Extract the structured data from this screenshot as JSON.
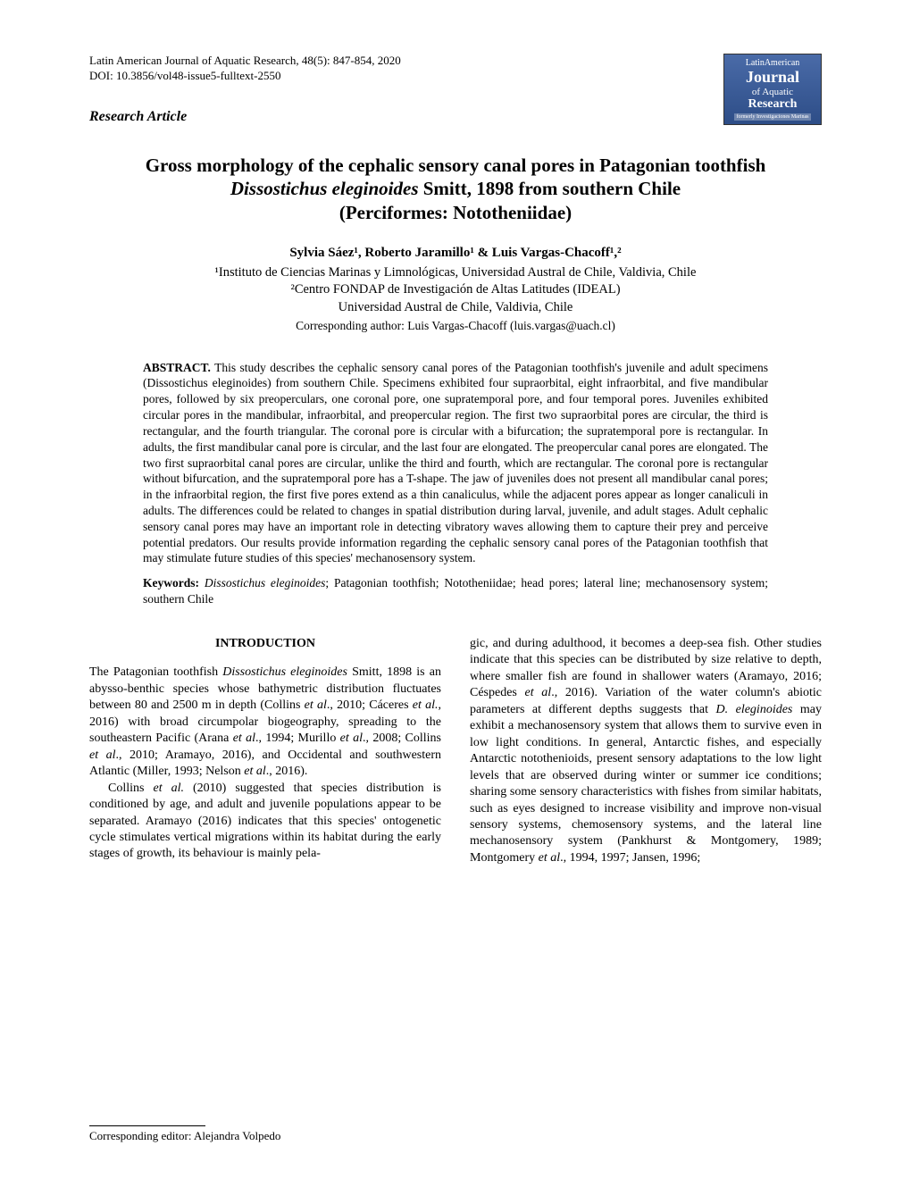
{
  "journal": {
    "citation": "Latin American Journal of Aquatic Research, 48(5): 847-854, 2020",
    "doi": "DOI: 10.3856/vol48-issue5-fulltext-2550",
    "article_type": "Research Article"
  },
  "logo": {
    "top": "LatinAmerican",
    "journal": "Journal",
    "aquatic": "of Aquatic",
    "research": "Research",
    "bottom": "formerly Investigaciones Marinas"
  },
  "title": {
    "line1": "Gross morphology of the cephalic sensory canal pores in Patagonian toothfish",
    "species": "Dissostichus eleginoides",
    "line2_rest": " Smitt, 1898 from southern Chile",
    "line3": "(Perciformes: Nototheniidae)"
  },
  "authors": "Sylvia Sáez¹, Roberto Jaramillo¹ & Luis Vargas-Chacoff¹,²",
  "affiliations": {
    "aff1": "¹Instituto de Ciencias Marinas y Limnológicas, Universidad Austral de Chile, Valdivia, Chile",
    "aff2": "²Centro FONDAP de Investigación de Altas Latitudes (IDEAL)",
    "aff3": "Universidad Austral de Chile, Valdivia, Chile",
    "corresponding": "Corresponding author: Luis Vargas-Chacoff (luis.vargas@uach.cl)"
  },
  "abstract": {
    "label": "ABSTRACT.",
    "text": " This study describes the cephalic sensory canal pores of the Patagonian toothfish's juvenile and adult specimens (Dissostichus eleginoides) from southern Chile. Specimens exhibited four supraorbital, eight infraorbital, and five mandibular pores, followed by six preoperculars, one coronal pore, one supratemporal pore, and four temporal pores. Juveniles exhibited circular pores in the mandibular, infraorbital, and preopercular region. The first two supraorbital pores are circular, the third is rectangular, and the fourth triangular. The coronal pore is circular with a bifurcation; the supratemporal pore is rectangular. In adults, the first mandibular canal pore is circular, and the last four are elongated. The preopercular canal pores are elongated. The two first supraorbital canal pores are circular, unlike the third and fourth, which are rectangular. The coronal pore is rectangular without bifurcation, and the supratemporal pore has a T-shape. The jaw of juveniles does not present all mandibular canal pores; in the infraorbital region, the first five pores extend as a thin canaliculus, while the adjacent pores appear as longer canaliculi in adults. The differences could be related to changes in spatial distribution during larval, juvenile, and adult stages. Adult cephalic sensory canal pores may have an important role in detecting vibratory waves allowing them to capture their prey and perceive potential predators. Our results provide information regarding the cephalic sensory canal pores of the Patagonian toothfish that may stimulate future studies of this species' mechanosensory system."
  },
  "keywords": {
    "label": "Keywords:",
    "species": "Dissostichus eleginoides",
    "rest": "; Patagonian toothfish; Nototheniidae; head pores; lateral line; mechanosensory system; southern Chile"
  },
  "body": {
    "section_heading": "INTRODUCTION",
    "col1_p1a": "The Patagonian toothfish ",
    "col1_p1_species": "Dissostichus eleginoides",
    "col1_p1b": " Smitt, 1898 is an abysso-benthic species whose bathymetric distribution fluctuates between 80 and 2500 m in depth (Collins ",
    "col1_p1c": "et al",
    "col1_p1d": "., 2010; Cáceres ",
    "col1_p1e": "et al.",
    "col1_p1f": ", 2016) with broad circumpolar biogeography, spreading to the southeastern Pacific (Arana ",
    "col1_p1g": "et al",
    "col1_p1h": "., 1994; Murillo ",
    "col1_p1i": "et al",
    "col1_p1j": "., 2008; Collins ",
    "col1_p1k": "et al",
    "col1_p1l": "., 2010; Aramayo, 2016), and Occidental and southwestern Atlantic (Miller, 1993; Nelson ",
    "col1_p1m": "et al",
    "col1_p1n": "., 2016).",
    "col1_p2a": "Collins ",
    "col1_p2b": "et al.",
    "col1_p2c": " (2010) suggested that species distribution is conditioned by age, and adult and juvenile populations appear to be separated. Aramayo (2016) indicates that this species' ontogenetic cycle stimulates vertical migrations within its habitat during the early stages of growth, its behaviour is mainly pela-",
    "col2_p1a": "gic, and during adulthood, it becomes a deep-sea fish. Other studies indicate that this species can be distributed by size relative to depth, where smaller fish are found in shallower waters (Aramayo, 2016; Céspedes ",
    "col2_p1b": "et al",
    "col2_p1c": "., 2016). Variation of the water column's abiotic parameters at different depths suggests that ",
    "col2_p1_species": "D. eleginoides",
    "col2_p1d": " may exhibit a mechanosensory system that allows them to survive even in low light conditions. In general, Antarctic fishes, and especially Antarctic notothenioids, present sensory adaptations to the low light levels that are observed during winter or summer ice conditions; sharing some sensory characteristics with fishes from similar habitats, such as eyes designed to increase visibility and improve non-visual sensory systems, chemosensory systems, and the lateral line mechanosensory system (Pankhurst & Montgomery, 1989; Montgomery ",
    "col2_p1e": "et al",
    "col2_p1f": "., 1994, 1997; Jansen, 1996;"
  },
  "footer": {
    "editor": "Corresponding editor: Alejandra Volpedo"
  },
  "style": {
    "page_bg": "#ffffff",
    "text_color": "#000000",
    "logo_bg_top": "#4a6ba8",
    "logo_bg_bottom": "#2d4d87",
    "title_fontsize": 21,
    "body_fontsize": 14,
    "abstract_fontsize": 13.5,
    "font_family": "Times New Roman"
  }
}
